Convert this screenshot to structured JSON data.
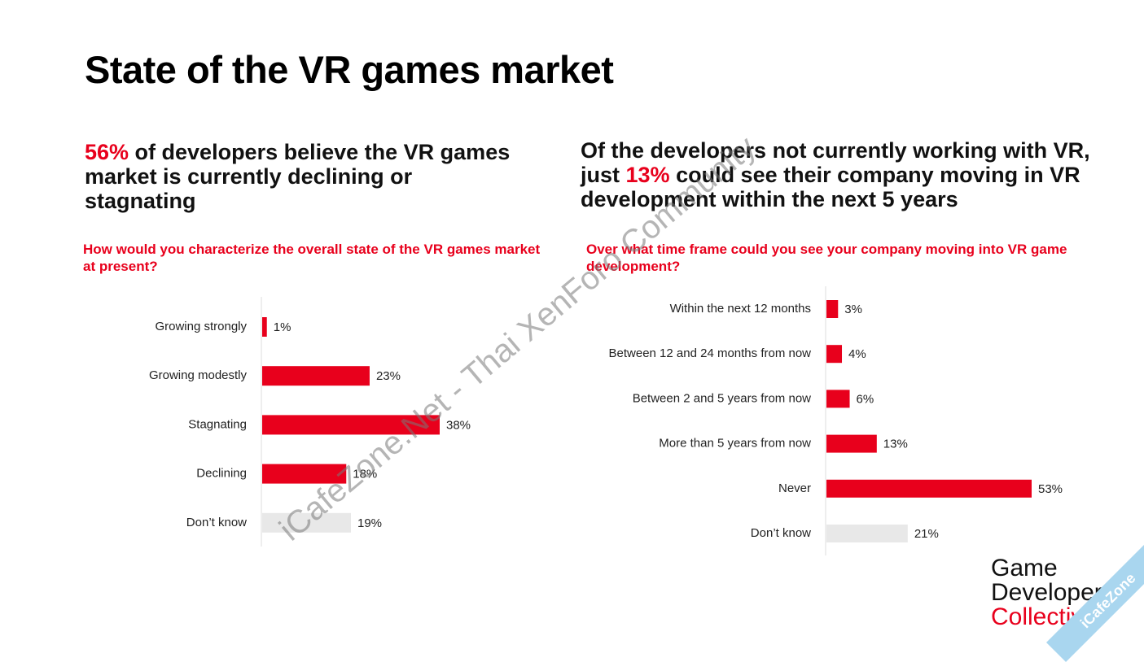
{
  "title": "State of the VR games market",
  "headlines": [
    [
      {
        "text": "56%",
        "emphasis": true
      },
      {
        "text": " of developers believe the VR games market is currently declining or stagnating",
        "emphasis": false
      }
    ],
    [
      {
        "text": "Of the developers not currently working with VR, just ",
        "emphasis": false
      },
      {
        "text": "13%",
        "emphasis": true
      },
      {
        "text": " could see their company moving in VR development within the next 5 years",
        "emphasis": false
      }
    ]
  ],
  "chart_data": [
    {
      "type": "barh",
      "title": "How would you characterize the overall state of the VR games market at present?",
      "categories": [
        "Growing strongly",
        "Growing modestly",
        "Stagnating",
        "Declining",
        "Don’t know"
      ],
      "values": [
        1,
        23,
        38,
        18,
        19
      ],
      "value_labels": [
        "1%",
        "23%",
        "38%",
        "18%",
        "19%"
      ],
      "colors": [
        "#e8001c",
        "#e8001c",
        "#e8001c",
        "#e8001c",
        "#e8e8e8"
      ]
    },
    {
      "type": "barh",
      "title": "Over what time frame could you see your company moving into VR game development?",
      "categories": [
        "Within the next 12 months",
        "Between 12 and 24 months from now",
        "Between 2 and 5 years from now",
        "More than 5 years from now",
        "Never",
        "Don’t know"
      ],
      "values": [
        3,
        4,
        6,
        13,
        53,
        21
      ],
      "value_labels": [
        "3%",
        "4%",
        "6%",
        "13%",
        "53%",
        "21%"
      ],
      "colors": [
        "#e8001c",
        "#e8001c",
        "#e8001c",
        "#e8001c",
        "#e8001c",
        "#e8e8e8"
      ]
    }
  ],
  "logo": [
    "Game",
    "Developer",
    "Collective"
  ],
  "watermark": "iCafeZone.Net - Thai XenForo Community",
  "badge": "iCafeZone"
}
